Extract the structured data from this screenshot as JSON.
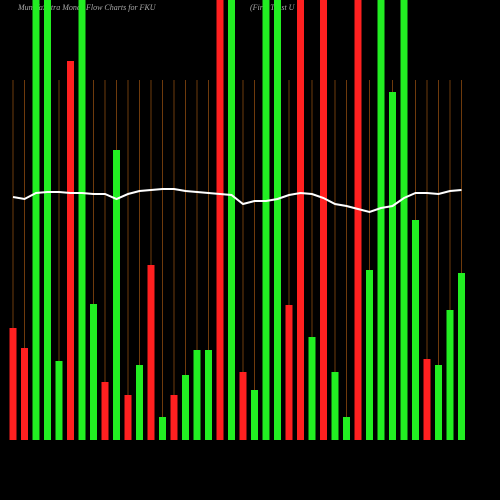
{
  "chart_data": {
    "type": "bar",
    "title": "MunafaSutra  Money Flow  Charts for FKU",
    "subtitle": "(First Trust U",
    "ylim": [
      0,
      440
    ],
    "values": [
      112,
      92,
      440,
      440,
      79,
      379,
      440,
      136,
      58,
      290,
      45,
      75,
      175,
      23,
      45,
      65,
      90,
      90,
      440,
      440,
      68,
      50,
      440,
      440,
      135,
      440,
      103,
      440,
      68,
      23,
      440,
      170,
      440,
      348,
      440,
      220,
      81,
      75,
      130,
      167
    ],
    "colors": [
      "#ff2020",
      "#ff2020",
      "#22ee22",
      "#22ee22",
      "#22ee22",
      "#ff2020",
      "#22ee22",
      "#22ee22",
      "#ff2020",
      "#22ee22",
      "#ff2020",
      "#22ee22",
      "#ff2020",
      "#22ee22",
      "#ff2020",
      "#22ee22",
      "#22ee22",
      "#22ee22",
      "#ff2020",
      "#22ee22",
      "#ff2020",
      "#22ee22",
      "#22ee22",
      "#22ee22",
      "#ff2020",
      "#ff2020",
      "#22ee22",
      "#ff2020",
      "#22ee22",
      "#22ee22",
      "#ff2020",
      "#22ee22",
      "#22ee22",
      "#22ee22",
      "#22ee22",
      "#22ee22",
      "#ff2020",
      "#22ee22",
      "#22ee22",
      "#22ee22"
    ],
    "line": {
      "color": "#ffffff",
      "values": [
        243,
        241,
        247,
        248,
        248,
        247,
        247,
        246,
        246,
        241,
        246,
        249,
        250,
        251,
        251,
        249,
        248,
        247,
        246,
        245,
        236,
        239,
        239,
        241,
        245,
        247,
        246,
        242,
        236,
        234,
        231,
        228,
        232,
        234,
        242,
        247,
        247,
        246,
        249,
        250
      ]
    }
  }
}
